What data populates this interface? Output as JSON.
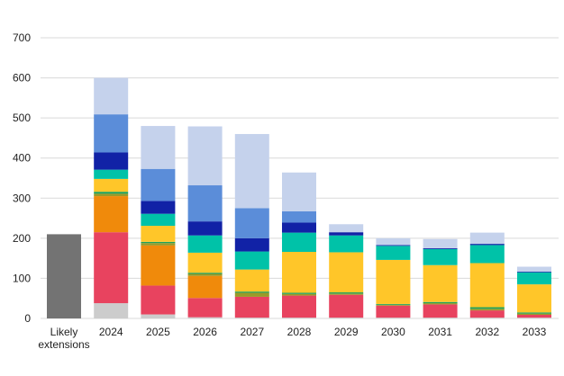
{
  "chart_data": {
    "type": "bar",
    "stacked": true,
    "categories": [
      "Likely extensions",
      "2024",
      "2025",
      "2026",
      "2027",
      "2028",
      "2029",
      "2030",
      "2031",
      "2032",
      "2033"
    ],
    "category_label_lines": [
      [
        "Likely",
        "extensions"
      ],
      [
        "2024"
      ],
      [
        "2025"
      ],
      [
        "2026"
      ],
      [
        "2027"
      ],
      [
        "2028"
      ],
      [
        "2029"
      ],
      [
        "2030"
      ],
      [
        "2031"
      ],
      [
        "2032"
      ],
      [
        "2033"
      ]
    ],
    "ylim": [
      0,
      700
    ],
    "yticks": [
      0,
      100,
      200,
      300,
      400,
      500,
      600,
      700
    ],
    "grid": true,
    "legend": "none",
    "title": "",
    "xlabel": "",
    "ylabel": "",
    "series": [
      {
        "color": "#737373",
        "values": [
          210,
          0,
          0,
          0,
          0,
          0,
          0,
          0,
          0,
          0,
          0
        ]
      },
      {
        "color": "#cccccc",
        "values": [
          0,
          38,
          10,
          3,
          2,
          2,
          2,
          2,
          2,
          2,
          2
        ]
      },
      {
        "color": "#e8435f",
        "values": [
          0,
          177,
          72,
          48,
          52,
          55,
          57,
          30,
          33,
          18,
          7
        ]
      },
      {
        "color": "#f08a0b",
        "values": [
          0,
          90,
          100,
          55,
          0,
          0,
          0,
          0,
          0,
          0,
          0
        ]
      },
      {
        "color": "#9a9a28",
        "values": [
          0,
          6,
          6,
          5,
          10,
          4,
          3,
          2,
          3,
          4,
          3
        ]
      },
      {
        "color": "#1fa25a",
        "values": [
          0,
          5,
          3,
          3,
          3,
          3,
          3,
          2,
          3,
          4,
          3
        ]
      },
      {
        "color": "#ffc629",
        "values": [
          0,
          32,
          40,
          50,
          55,
          102,
          100,
          110,
          92,
          110,
          70
        ]
      },
      {
        "color": "#00c2a8",
        "values": [
          0,
          23,
          30,
          43,
          45,
          48,
          42,
          35,
          40,
          45,
          30
        ]
      },
      {
        "color": "#1122a6",
        "values": [
          0,
          43,
          32,
          35,
          33,
          25,
          8,
          2,
          2,
          3,
          2
        ]
      },
      {
        "color": "#5b8dd9",
        "values": [
          0,
          95,
          80,
          90,
          75,
          28,
          0,
          0,
          0,
          0,
          0
        ]
      },
      {
        "color": "#c5d2ec",
        "values": [
          0,
          91,
          107,
          147,
          185,
          97,
          20,
          17,
          23,
          28,
          12
        ]
      }
    ]
  }
}
